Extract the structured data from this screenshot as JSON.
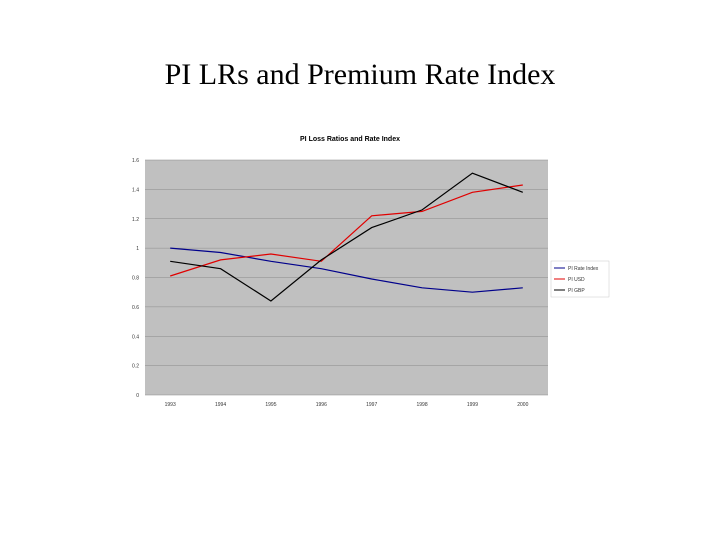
{
  "slide": {
    "title": "PI LRs and Premium Rate Index"
  },
  "chart_data": {
    "type": "line",
    "title": "PI Loss Ratios and Rate Index",
    "xlabel": "",
    "ylabel": "",
    "categories": [
      "1993",
      "1994",
      "1995",
      "1996",
      "1997",
      "1998",
      "1999",
      "2000"
    ],
    "ylim": [
      0,
      1.6
    ],
    "yticks": [
      "1.6",
      "1.4",
      "1.2",
      "1",
      "0.8",
      "0.6",
      "0.4",
      "0.2",
      "0"
    ],
    "grid": true,
    "legend_position": "right",
    "plot_background": "#c0c0c0",
    "series": [
      {
        "name": "PI Rate Index",
        "color": "#00008b",
        "values": [
          1.0,
          0.97,
          0.91,
          0.86,
          0.79,
          0.73,
          0.7,
          0.73
        ]
      },
      {
        "name": "PI USD",
        "color": "#e00000",
        "values": [
          0.81,
          0.92,
          0.96,
          0.91,
          1.22,
          1.25,
          1.38,
          1.43
        ]
      },
      {
        "name": "PI GBP",
        "color": "#000000",
        "values": [
          0.91,
          0.86,
          0.64,
          0.92,
          1.14,
          1.26,
          1.51,
          1.38
        ]
      }
    ]
  }
}
